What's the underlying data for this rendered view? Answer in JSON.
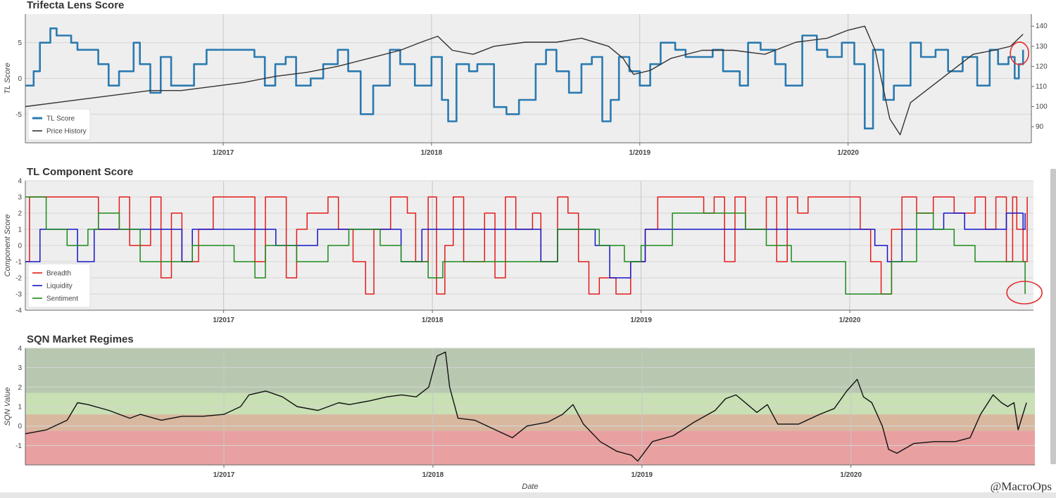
{
  "chart_data": [
    {
      "type": "line",
      "title": "Trifecta Lens Score",
      "ylabel": "TL Score",
      "ylim": [
        -9,
        9
      ],
      "y2lim": [
        82,
        146
      ],
      "yticks": [
        -5,
        0,
        5
      ],
      "y2ticks": [
        90,
        100,
        110,
        120,
        130,
        140
      ],
      "y2tick_labels": [
        "90",
        "100",
        "110",
        "120",
        "130",
        "140"
      ],
      "xlim": [
        2016.05,
        2020.88
      ],
      "xticks": [
        2017,
        2018,
        2019,
        2020
      ],
      "xtick_labels": [
        "1/2017",
        "1/2018",
        "1/2019",
        "1/2020"
      ],
      "legend_position": "bottom-left",
      "grid": true,
      "series": [
        {
          "name": "TL Score",
          "color": "#2a7ab0",
          "axis": "left",
          "step": true,
          "x": [
            2016.05,
            2016.09,
            2016.12,
            2016.17,
            2016.2,
            2016.27,
            2016.3,
            2016.4,
            2016.45,
            2016.5,
            2016.57,
            2016.6,
            2016.65,
            2016.7,
            2016.75,
            2016.8,
            2016.86,
            2016.92,
            2017.0,
            2017.08,
            2017.15,
            2017.2,
            2017.25,
            2017.3,
            2017.35,
            2017.42,
            2017.48,
            2017.55,
            2017.6,
            2017.66,
            2017.72,
            2017.8,
            2017.85,
            2017.92,
            2018.0,
            2018.05,
            2018.08,
            2018.12,
            2018.18,
            2018.22,
            2018.3,
            2018.36,
            2018.42,
            2018.5,
            2018.55,
            2018.6,
            2018.66,
            2018.72,
            2018.77,
            2018.82,
            2018.86,
            2018.9,
            2018.95,
            2019.0,
            2019.05,
            2019.1,
            2019.17,
            2019.22,
            2019.28,
            2019.35,
            2019.4,
            2019.48,
            2019.52,
            2019.58,
            2019.65,
            2019.7,
            2019.78,
            2019.85,
            2019.9,
            2019.97,
            2020.03,
            2020.08,
            2020.12,
            2020.17,
            2020.22,
            2020.3,
            2020.35,
            2020.42,
            2020.48,
            2020.55,
            2020.62,
            2020.68,
            2020.72,
            2020.77,
            2020.8,
            2020.82,
            2020.84
          ],
          "y": [
            -1,
            1,
            5,
            7,
            6,
            5,
            4,
            2,
            -1,
            1,
            5,
            2,
            -2,
            3,
            -1,
            -1,
            2,
            4,
            4,
            4,
            3,
            -1,
            2,
            3,
            -1,
            0,
            2,
            4,
            1,
            -5,
            -1,
            4,
            2,
            -1,
            3,
            -3,
            -6,
            2,
            1,
            2,
            -4,
            -5,
            -3,
            2,
            4,
            1,
            -2,
            2,
            3,
            -6,
            -3,
            3,
            1,
            -1,
            2,
            5,
            4,
            3,
            3,
            4,
            1,
            -1,
            5,
            4,
            2,
            -1,
            6,
            4,
            3,
            5,
            2,
            -7,
            4,
            -3,
            -1,
            5,
            3,
            4,
            1,
            3,
            -1,
            4,
            2,
            3,
            0,
            2,
            4
          ]
        },
        {
          "name": "Price History",
          "color": "#333333",
          "axis": "right",
          "step": false,
          "x": [
            2016.05,
            2016.2,
            2016.35,
            2016.5,
            2016.65,
            2016.8,
            2016.95,
            2017.1,
            2017.25,
            2017.4,
            2017.55,
            2017.7,
            2017.85,
            2017.95,
            2018.03,
            2018.1,
            2018.2,
            2018.3,
            2018.45,
            2018.6,
            2018.72,
            2018.85,
            2018.92,
            2018.97,
            2019.05,
            2019.15,
            2019.3,
            2019.45,
            2019.6,
            2019.75,
            2019.9,
            2020.0,
            2020.08,
            2020.13,
            2020.2,
            2020.25,
            2020.3,
            2020.4,
            2020.5,
            2020.6,
            2020.7,
            2020.78,
            2020.84
          ],
          "y": [
            100,
            102,
            104,
            106,
            108,
            108,
            110,
            112,
            115,
            117,
            120,
            124,
            128,
            132,
            135,
            128,
            126,
            130,
            132,
            132,
            134,
            130,
            124,
            116,
            118,
            124,
            128,
            128,
            126,
            132,
            134,
            138,
            140,
            128,
            94,
            86,
            102,
            110,
            118,
            126,
            128,
            130,
            136
          ]
        }
      ]
    },
    {
      "type": "line",
      "title": "TL Component Score",
      "ylabel": "Component Score",
      "ylim": [
        -4,
        4
      ],
      "yticks": [
        -4,
        -3,
        -2,
        -1,
        0,
        1,
        2,
        3,
        4
      ],
      "xlim": [
        2016.05,
        2020.88
      ],
      "xticks": [
        2017,
        2018,
        2019,
        2020
      ],
      "xtick_labels": [
        "1/2017",
        "1/2018",
        "1/2019",
        "1/2020"
      ],
      "legend_position": "bottom-left",
      "grid": true,
      "series": [
        {
          "name": "Breadth",
          "color": "#e41a1a",
          "step": true,
          "x": [
            2016.05,
            2016.07,
            2016.35,
            2016.4,
            2016.5,
            2016.55,
            2016.65,
            2016.7,
            2016.75,
            2016.8,
            2016.88,
            2016.95,
            2017.1,
            2017.15,
            2017.2,
            2017.3,
            2017.35,
            2017.4,
            2017.5,
            2017.55,
            2017.62,
            2017.68,
            2017.72,
            2017.8,
            2017.88,
            2017.92,
            2017.98,
            2018.02,
            2018.06,
            2018.1,
            2018.15,
            2018.25,
            2018.3,
            2018.35,
            2018.4,
            2018.48,
            2018.52,
            2018.6,
            2018.65,
            2018.7,
            2018.75,
            2018.8,
            2018.88,
            2018.95,
            2019.02,
            2019.08,
            2019.15,
            2019.3,
            2019.35,
            2019.4,
            2019.45,
            2019.5,
            2019.6,
            2019.65,
            2019.7,
            2019.75,
            2019.8,
            2019.95,
            2020.05,
            2020.1,
            2020.15,
            2020.2,
            2020.25,
            2020.32,
            2020.4,
            2020.5,
            2020.6,
            2020.65,
            2020.7,
            2020.75,
            2020.78,
            2020.8,
            2020.83,
            2020.85
          ],
          "y": [
            -1,
            3,
            3,
            1,
            3,
            0,
            3,
            -2,
            2,
            -1,
            1,
            3,
            3,
            -1,
            3,
            -2,
            1,
            2,
            3,
            1,
            -1,
            -3,
            1,
            3,
            2,
            -1,
            3,
            -3,
            0,
            3,
            -1,
            2,
            -2,
            3,
            1,
            2,
            -1,
            3,
            2,
            -1,
            -3,
            -2,
            -3,
            -1,
            1,
            3,
            3,
            2,
            3,
            -1,
            3,
            1,
            3,
            -1,
            3,
            2,
            3,
            3,
            1,
            -1,
            -3,
            1,
            3,
            2,
            3,
            2,
            3,
            1,
            3,
            -1,
            3,
            1,
            -1,
            3
          ]
        },
        {
          "name": "Liquidity",
          "color": "#1515c8",
          "step": true,
          "x": [
            2016.05,
            2016.12,
            2016.15,
            2016.3,
            2016.38,
            2016.4,
            2016.6,
            2016.8,
            2016.85,
            2017.2,
            2017.25,
            2017.45,
            2017.5,
            2017.7,
            2017.85,
            2017.95,
            2018.0,
            2018.2,
            2018.3,
            2018.45,
            2018.52,
            2018.6,
            2018.65,
            2018.78,
            2018.85,
            2018.95,
            2019.02,
            2019.1,
            2019.45,
            2019.5,
            2019.8,
            2019.95,
            2020.05,
            2020.12,
            2020.18,
            2020.25,
            2020.3,
            2020.4,
            2020.45,
            2020.55,
            2020.62,
            2020.75,
            2020.8,
            2020.83,
            2020.84
          ],
          "y": [
            -1,
            1,
            1,
            -1,
            1,
            1,
            1,
            -1,
            1,
            1,
            0,
            1,
            1,
            1,
            -1,
            1,
            1,
            1,
            1,
            1,
            -1,
            1,
            1,
            0,
            -2,
            -1,
            1,
            1,
            1,
            1,
            1,
            1,
            1,
            0,
            -1,
            1,
            1,
            1,
            2,
            1,
            1,
            2,
            2,
            1,
            2
          ]
        },
        {
          "name": "Sentiment",
          "color": "#1a8a1a",
          "step": true,
          "x": [
            2016.05,
            2016.1,
            2016.15,
            2016.25,
            2016.35,
            2016.4,
            2016.5,
            2016.6,
            2016.75,
            2016.85,
            2017.0,
            2017.05,
            2017.15,
            2017.2,
            2017.35,
            2017.5,
            2017.6,
            2017.75,
            2017.85,
            2017.98,
            2018.05,
            2018.25,
            2018.4,
            2018.6,
            2018.8,
            2018.92,
            2019.0,
            2019.15,
            2019.4,
            2019.5,
            2019.6,
            2019.72,
            2019.85,
            2019.98,
            2020.1,
            2020.2,
            2020.32,
            2020.4,
            2020.5,
            2020.6,
            2020.7,
            2020.75,
            2020.8,
            2020.84
          ],
          "y": [
            3,
            3,
            1,
            0,
            1,
            2,
            1,
            -1,
            -1,
            0,
            0,
            -1,
            -2,
            0,
            -1,
            0,
            1,
            0,
            -1,
            -2,
            -1,
            -1,
            -1,
            1,
            0,
            -1,
            0,
            2,
            2,
            1,
            0,
            -1,
            -1,
            -3,
            -3,
            -1,
            2,
            1,
            0,
            -1,
            -1,
            -1,
            -1,
            -3
          ]
        }
      ]
    },
    {
      "type": "line",
      "title": "SQN Market Regimes",
      "ylabel": "SQN Value",
      "xlabel": "Date",
      "ylim": [
        -2,
        4
      ],
      "yticks": [
        -1,
        0,
        1,
        2,
        3,
        4
      ],
      "xlim": [
        2016.05,
        2020.88
      ],
      "xticks": [
        2017,
        2018,
        2019,
        2020
      ],
      "xtick_labels": [
        "1/2017",
        "1/2018",
        "1/2019",
        "1/2020"
      ],
      "grid": true,
      "bands": [
        {
          "from": -2,
          "to": -0.25,
          "color": "#e8a0a0"
        },
        {
          "from": -0.25,
          "to": 0.6,
          "color": "#d9b8a0"
        },
        {
          "from": 0.6,
          "to": 1.7,
          "color": "#c8e0b4"
        },
        {
          "from": 1.7,
          "to": 4,
          "color": "#b8c8b0"
        }
      ],
      "series": [
        {
          "name": "SQN",
          "color": "#111111",
          "step": false,
          "x": [
            2016.05,
            2016.15,
            2016.25,
            2016.3,
            2016.35,
            2016.45,
            2016.55,
            2016.6,
            2016.7,
            2016.8,
            2016.9,
            2017.0,
            2017.08,
            2017.12,
            2017.2,
            2017.28,
            2017.35,
            2017.45,
            2017.55,
            2017.6,
            2017.7,
            2017.78,
            2017.85,
            2017.92,
            2017.98,
            2018.02,
            2018.06,
            2018.08,
            2018.12,
            2018.2,
            2018.3,
            2018.38,
            2018.45,
            2018.55,
            2018.62,
            2018.67,
            2018.72,
            2018.8,
            2018.88,
            2018.95,
            2018.98,
            2019.05,
            2019.15,
            2019.25,
            2019.35,
            2019.4,
            2019.45,
            2019.55,
            2019.6,
            2019.65,
            2019.75,
            2019.85,
            2019.92,
            2019.98,
            2020.03,
            2020.06,
            2020.1,
            2020.15,
            2020.18,
            2020.22,
            2020.3,
            2020.4,
            2020.5,
            2020.57,
            2020.62,
            2020.68,
            2020.72,
            2020.75,
            2020.78,
            2020.8,
            2020.84
          ],
          "y": [
            -0.4,
            -0.2,
            0.3,
            1.2,
            1.1,
            0.8,
            0.4,
            0.6,
            0.3,
            0.5,
            0.5,
            0.6,
            1.0,
            1.6,
            1.8,
            1.5,
            1.0,
            0.8,
            1.2,
            1.1,
            1.3,
            1.5,
            1.6,
            1.5,
            2.0,
            3.6,
            3.8,
            2.0,
            0.4,
            0.3,
            -0.2,
            -0.6,
            0.0,
            0.2,
            0.6,
            1.1,
            0.1,
            -0.8,
            -1.3,
            -1.5,
            -1.8,
            -0.8,
            -0.5,
            0.2,
            0.8,
            1.4,
            1.6,
            0.7,
            1.1,
            0.1,
            0.1,
            0.6,
            0.9,
            1.8,
            2.4,
            1.5,
            1.2,
            0.0,
            -1.2,
            -1.4,
            -0.9,
            -0.8,
            -0.8,
            -0.6,
            0.6,
            1.6,
            1.2,
            1.0,
            1.2,
            -0.2,
            1.2
          ]
        }
      ]
    }
  ],
  "watermark": "@MacroOps"
}
